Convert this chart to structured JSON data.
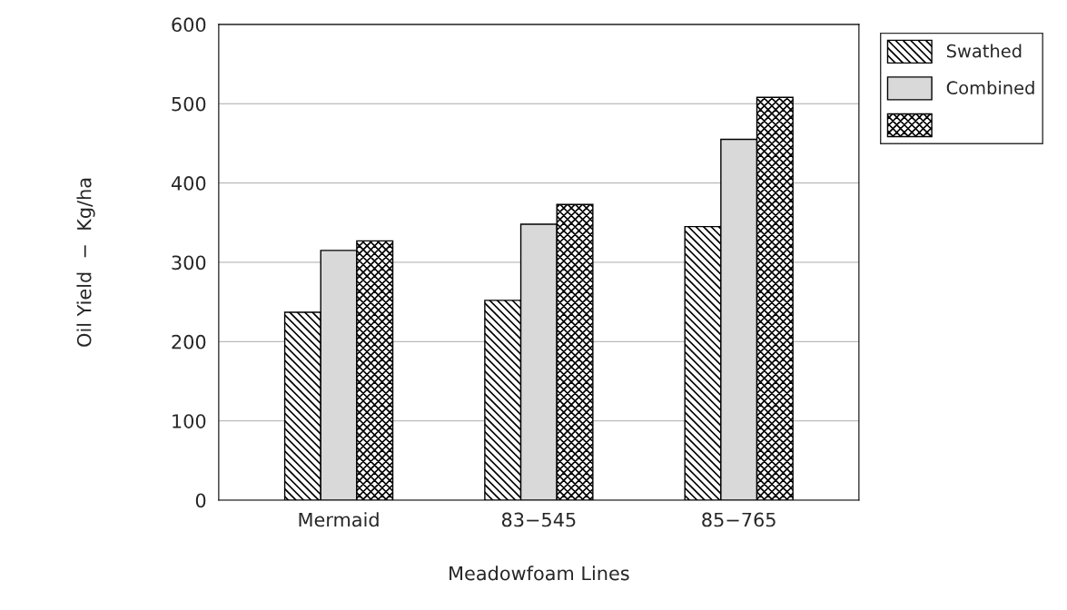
{
  "chart_data": {
    "type": "bar",
    "xlabel": "Meadowfoam Lines",
    "ylabel": "Oil Yield  −  Kg/ha",
    "categories": [
      "Mermaid",
      "83−545",
      "85−765"
    ],
    "series": [
      {
        "name": "Swathed",
        "color": "#000000",
        "values": [
          237,
          252,
          345
        ]
      },
      {
        "name": "Combined",
        "color": "#d9d9d9",
        "values": [
          315,
          348,
          455
        ]
      },
      {
        "color": "#000000",
        "values": [
          327,
          373,
          508
        ]
      }
    ],
    "ylim": [
      0,
      600
    ],
    "yticks": [
      0,
      100,
      200,
      300,
      400,
      500,
      600
    ],
    "grid": "y",
    "legend": "top right"
  }
}
